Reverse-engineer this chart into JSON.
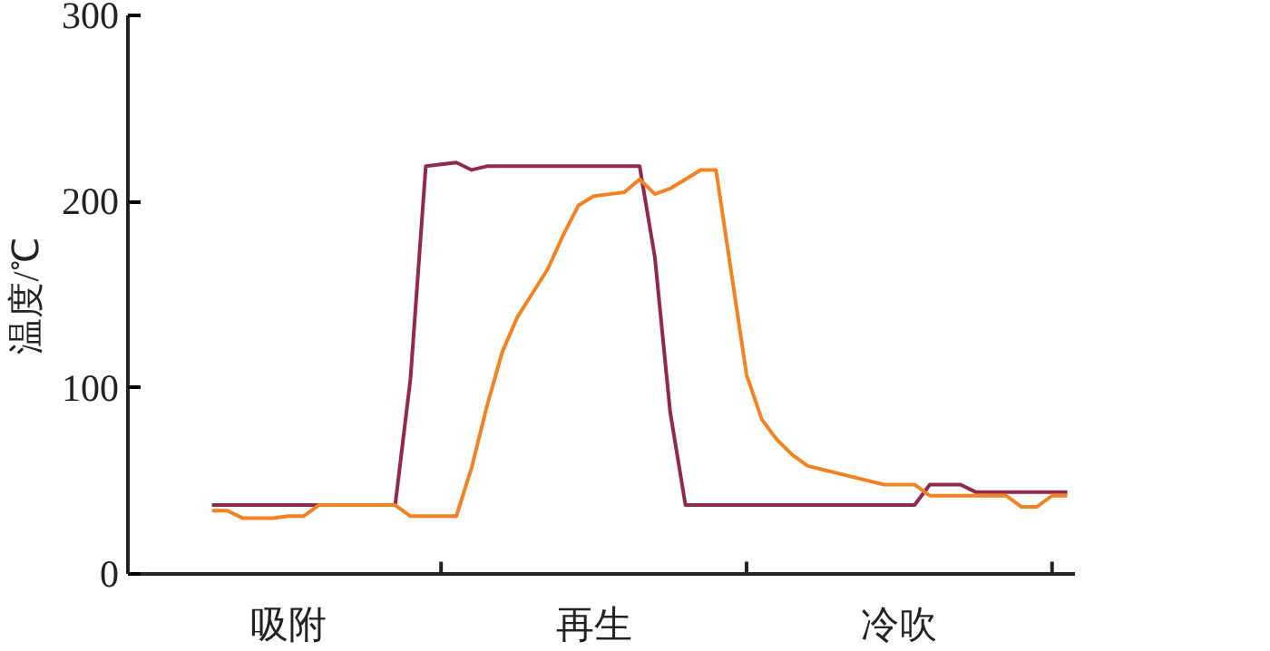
{
  "chart_data": {
    "type": "line",
    "ylabel": "温度/℃",
    "ylim": [
      0,
      300
    ],
    "yticks": [
      0,
      100,
      200,
      300
    ],
    "categories": [
      null,
      null,
      null,
      null,
      null,
      null,
      null,
      null,
      null,
      null,
      null,
      null,
      null,
      null,
      null,
      null,
      null,
      null,
      null,
      null,
      null,
      null,
      null,
      null,
      null,
      null,
      null,
      null,
      null,
      null,
      null,
      null,
      null,
      null,
      null,
      null,
      null,
      null,
      null,
      null,
      null,
      null,
      null,
      null,
      null,
      null,
      null,
      null,
      null,
      null,
      null,
      null,
      null,
      null,
      null,
      null,
      null,
      null,
      null,
      null,
      null,
      null
    ],
    "annotations": [
      "吸附",
      "再生",
      "冷吹"
    ],
    "grid": false,
    "line_style": "solid",
    "series": [
      {
        "color": "#93284f",
        "values": [
          null,
          null,
          null,
          null,
          null,
          37,
          37,
          37,
          37,
          37,
          37,
          37,
          37,
          37,
          37,
          37,
          37,
          37,
          105,
          219,
          220,
          221,
          217,
          219,
          219,
          219,
          219,
          219,
          219,
          219,
          219,
          219,
          219,
          219,
          170,
          87,
          37,
          37,
          37,
          37,
          37,
          37,
          37,
          37,
          37,
          37,
          37,
          37,
          37,
          37,
          37,
          37,
          48,
          48,
          48,
          44,
          44,
          44,
          44,
          44,
          44,
          44
        ]
      },
      {
        "color": "#f58220",
        "values": [
          null,
          null,
          null,
          null,
          null,
          34,
          34,
          30,
          30,
          30,
          31,
          31,
          37,
          37,
          37,
          37,
          37,
          37,
          31,
          31,
          31,
          31,
          57,
          90,
          119,
          138,
          151,
          164,
          182,
          198,
          203,
          204,
          205,
          212,
          204,
          207,
          212,
          217,
          217,
          162,
          107,
          83,
          72,
          64,
          58,
          56,
          54,
          52,
          50,
          48,
          48,
          48,
          42,
          42,
          42,
          42,
          42,
          42,
          36,
          36,
          42,
          42
        ]
      }
    ]
  }
}
